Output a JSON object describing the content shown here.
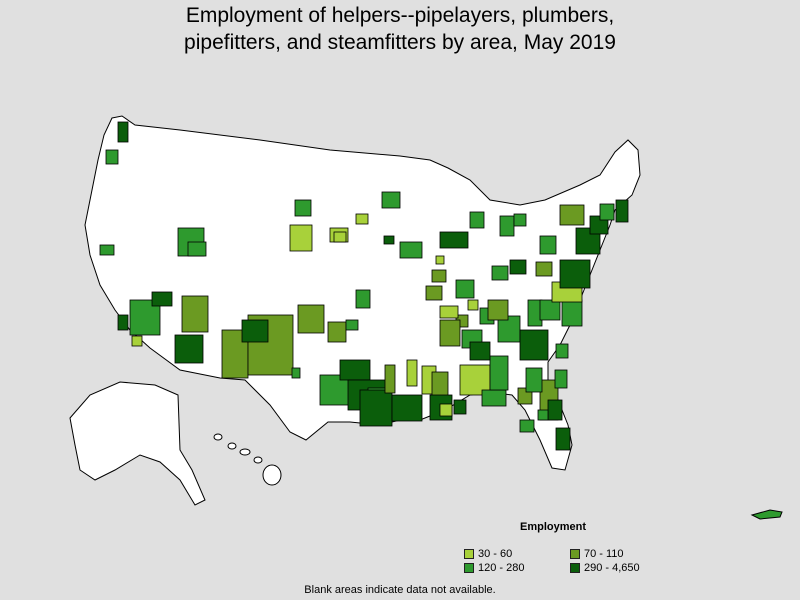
{
  "title_line1": "Employment of helpers--pipelayers, plumbers,",
  "title_line2": "pipefitters, and steamfitters by area, May 2019",
  "legend": {
    "title": "Employment",
    "items": [
      {
        "label": "30 - 60",
        "color": "#a8d13a"
      },
      {
        "label": "70 - 110",
        "color": "#6b9a22"
      },
      {
        "label": "120 - 280",
        "color": "#2e9a2e"
      },
      {
        "label": "290 - 4,650",
        "color": "#0b5e0b"
      }
    ]
  },
  "footnote": "Blank areas indicate data not available.",
  "colors": {
    "background": "#e0e0e0",
    "land": "#ffffff",
    "border": "#000000"
  }
}
